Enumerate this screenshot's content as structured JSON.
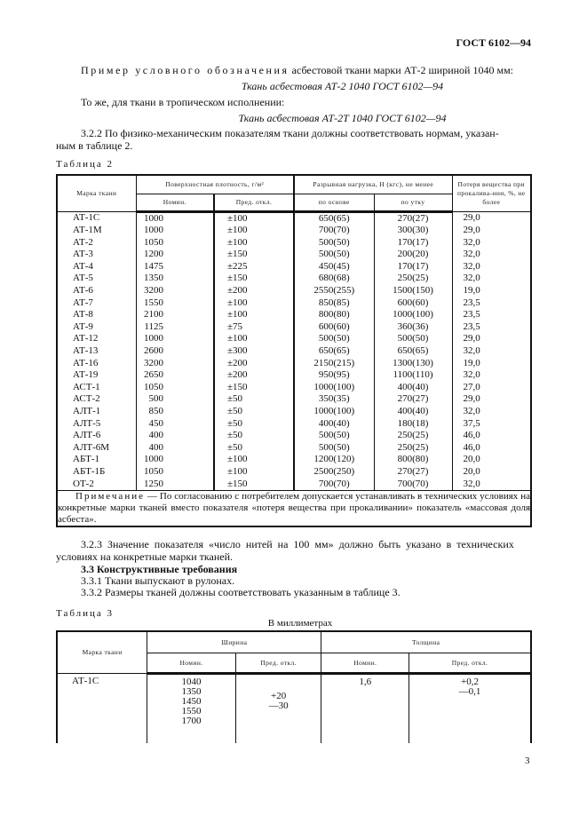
{
  "header": {
    "doc_id": "ГОСТ 6102—94"
  },
  "text": {
    "example_label": "Пример условного обозначения",
    "example_rest": " асбестовой ткани марки АТ-2 шириной 1040 мм:",
    "example_1": "Ткань асбестовая АТ-2 1040 ГОСТ 6102—94",
    "tropic": "То же, для ткани в тропическом исполнении:",
    "example_2": "Ткань асбестовая АТ-2Т 1040 ГОСТ 6102—94",
    "p322_a": "3.2.2 По физико-механическим показателям ткани должны соответствовать нормам, указан-",
    "p322_b": "ным в таблице 2.",
    "p323_a": "3.2.3 Значение показателя «число нитей на 100 мм» должно быть указано в технических",
    "p323_b": "условиях на конкретные марки тканей.",
    "s33": "3.3 Конструктивные требования",
    "p331": "3.3.1 Ткани выпускают в рулонах.",
    "p332": "3.3.2 Размеры тканей должны соответствовать указанным в таблице 3."
  },
  "table2": {
    "caption": "Таблица 2",
    "headers": {
      "mark": "Марка ткани",
      "density": "Поверхностная плотность, г/м²",
      "load": "Разрывная нагрузка, Н (кгс), не менее",
      "loss": "Потеря вещества при прокалива-нии, %, не более",
      "nom": "Номин.",
      "dev": "Пред. откл.",
      "warp": "по основе",
      "weft": "по утку"
    },
    "rows": [
      [
        "АТ-1С",
        "1000",
        "±100",
        "650(65)",
        "270(27)",
        "29,0"
      ],
      [
        "АТ-1М",
        "1000",
        "±100",
        "700(70)",
        "300(30)",
        "29,0"
      ],
      [
        "АТ-2",
        "1050",
        "±100",
        "500(50)",
        "170(17)",
        "32,0"
      ],
      [
        "АТ-3",
        "1200",
        "±150",
        "500(50)",
        "200(20)",
        "32,0"
      ],
      [
        "АТ-4",
        "1475",
        "±225",
        "450(45)",
        "170(17)",
        "32,0"
      ],
      [
        "АТ-5",
        "1350",
        "±150",
        "680(68)",
        "250(25)",
        "32,0"
      ],
      [
        "АТ-6",
        "3200",
        "±200",
        "2550(255)",
        "1500(150)",
        "19,0"
      ],
      [
        "АТ-7",
        "1550",
        "±100",
        "850(85)",
        "600(60)",
        "23,5"
      ],
      [
        "АТ-8",
        "2100",
        "±100",
        "800(80)",
        "1000(100)",
        "23,5"
      ],
      [
        "АТ-9",
        "1125",
        "±75",
        "600(60)",
        "360(36)",
        "23,5"
      ],
      [
        "АТ-12",
        "1000",
        "±100",
        "500(50)",
        "500(50)",
        "29,0"
      ],
      [
        "АТ-13",
        "2600",
        "±300",
        "650(65)",
        "650(65)",
        "32,0"
      ],
      [
        "АТ-16",
        "3200",
        "±200",
        "2150(215)",
        "1300(130)",
        "19,0"
      ],
      [
        "АТ-19",
        "2650",
        "±200",
        "950(95)",
        "1100(110)",
        "32,0"
      ],
      [
        "АСТ-1",
        "1050",
        "±150",
        "1000(100)",
        "400(40)",
        "27,0"
      ],
      [
        "АСТ-2",
        "500",
        "±50",
        "350(35)",
        "270(27)",
        "29,0"
      ],
      [
        "АЛТ-1",
        "850",
        "±50",
        "1000(100)",
        "400(40)",
        "32,0"
      ],
      [
        "АЛТ-5",
        "450",
        "±50",
        "400(40)",
        "180(18)",
        "37,5"
      ],
      [
        "АЛТ-6",
        "400",
        "±50",
        "500(50)",
        "250(25)",
        "46,0"
      ],
      [
        "АЛТ-6М",
        "400",
        "±50",
        "500(50)",
        "250(25)",
        "46,0"
      ],
      [
        "АБТ-1",
        "1000",
        "±100",
        "1200(120)",
        "800(80)",
        "20,0"
      ],
      [
        "АБТ-1Б",
        "1050",
        "±100",
        "2500(250)",
        "270(27)",
        "20,0"
      ],
      [
        "ОТ-2",
        "1250",
        "±150",
        "700(70)",
        "700(70)",
        "32,0"
      ]
    ],
    "note_label": "Примечание",
    "note_text": " — По согласованию с потребителем допускается устанавливать в технических условиях на конкретные марки тканей вместо показателя «потеря вещества при прокаливании» показатель «массовая доля асбеста»."
  },
  "table3": {
    "caption": "Таблица 3",
    "units": "В миллиметрах",
    "headers": {
      "mark": "Марка ткани",
      "width": "Ширина",
      "thickness": "Толщина",
      "nom": "Номин.",
      "dev": "Пред. откл.",
      "nom2": "Номин.",
      "dev2": "Пред. откл."
    },
    "row": {
      "mark": "АТ-1С",
      "widths": [
        "1040",
        "1350",
        "1450",
        "1550",
        "1700"
      ],
      "width_dev": [
        "+20",
        "—30"
      ],
      "thickness": "1,6",
      "thickness_dev": [
        "+0,2",
        "—0,1"
      ]
    }
  },
  "footer": {
    "page_number": "3"
  }
}
